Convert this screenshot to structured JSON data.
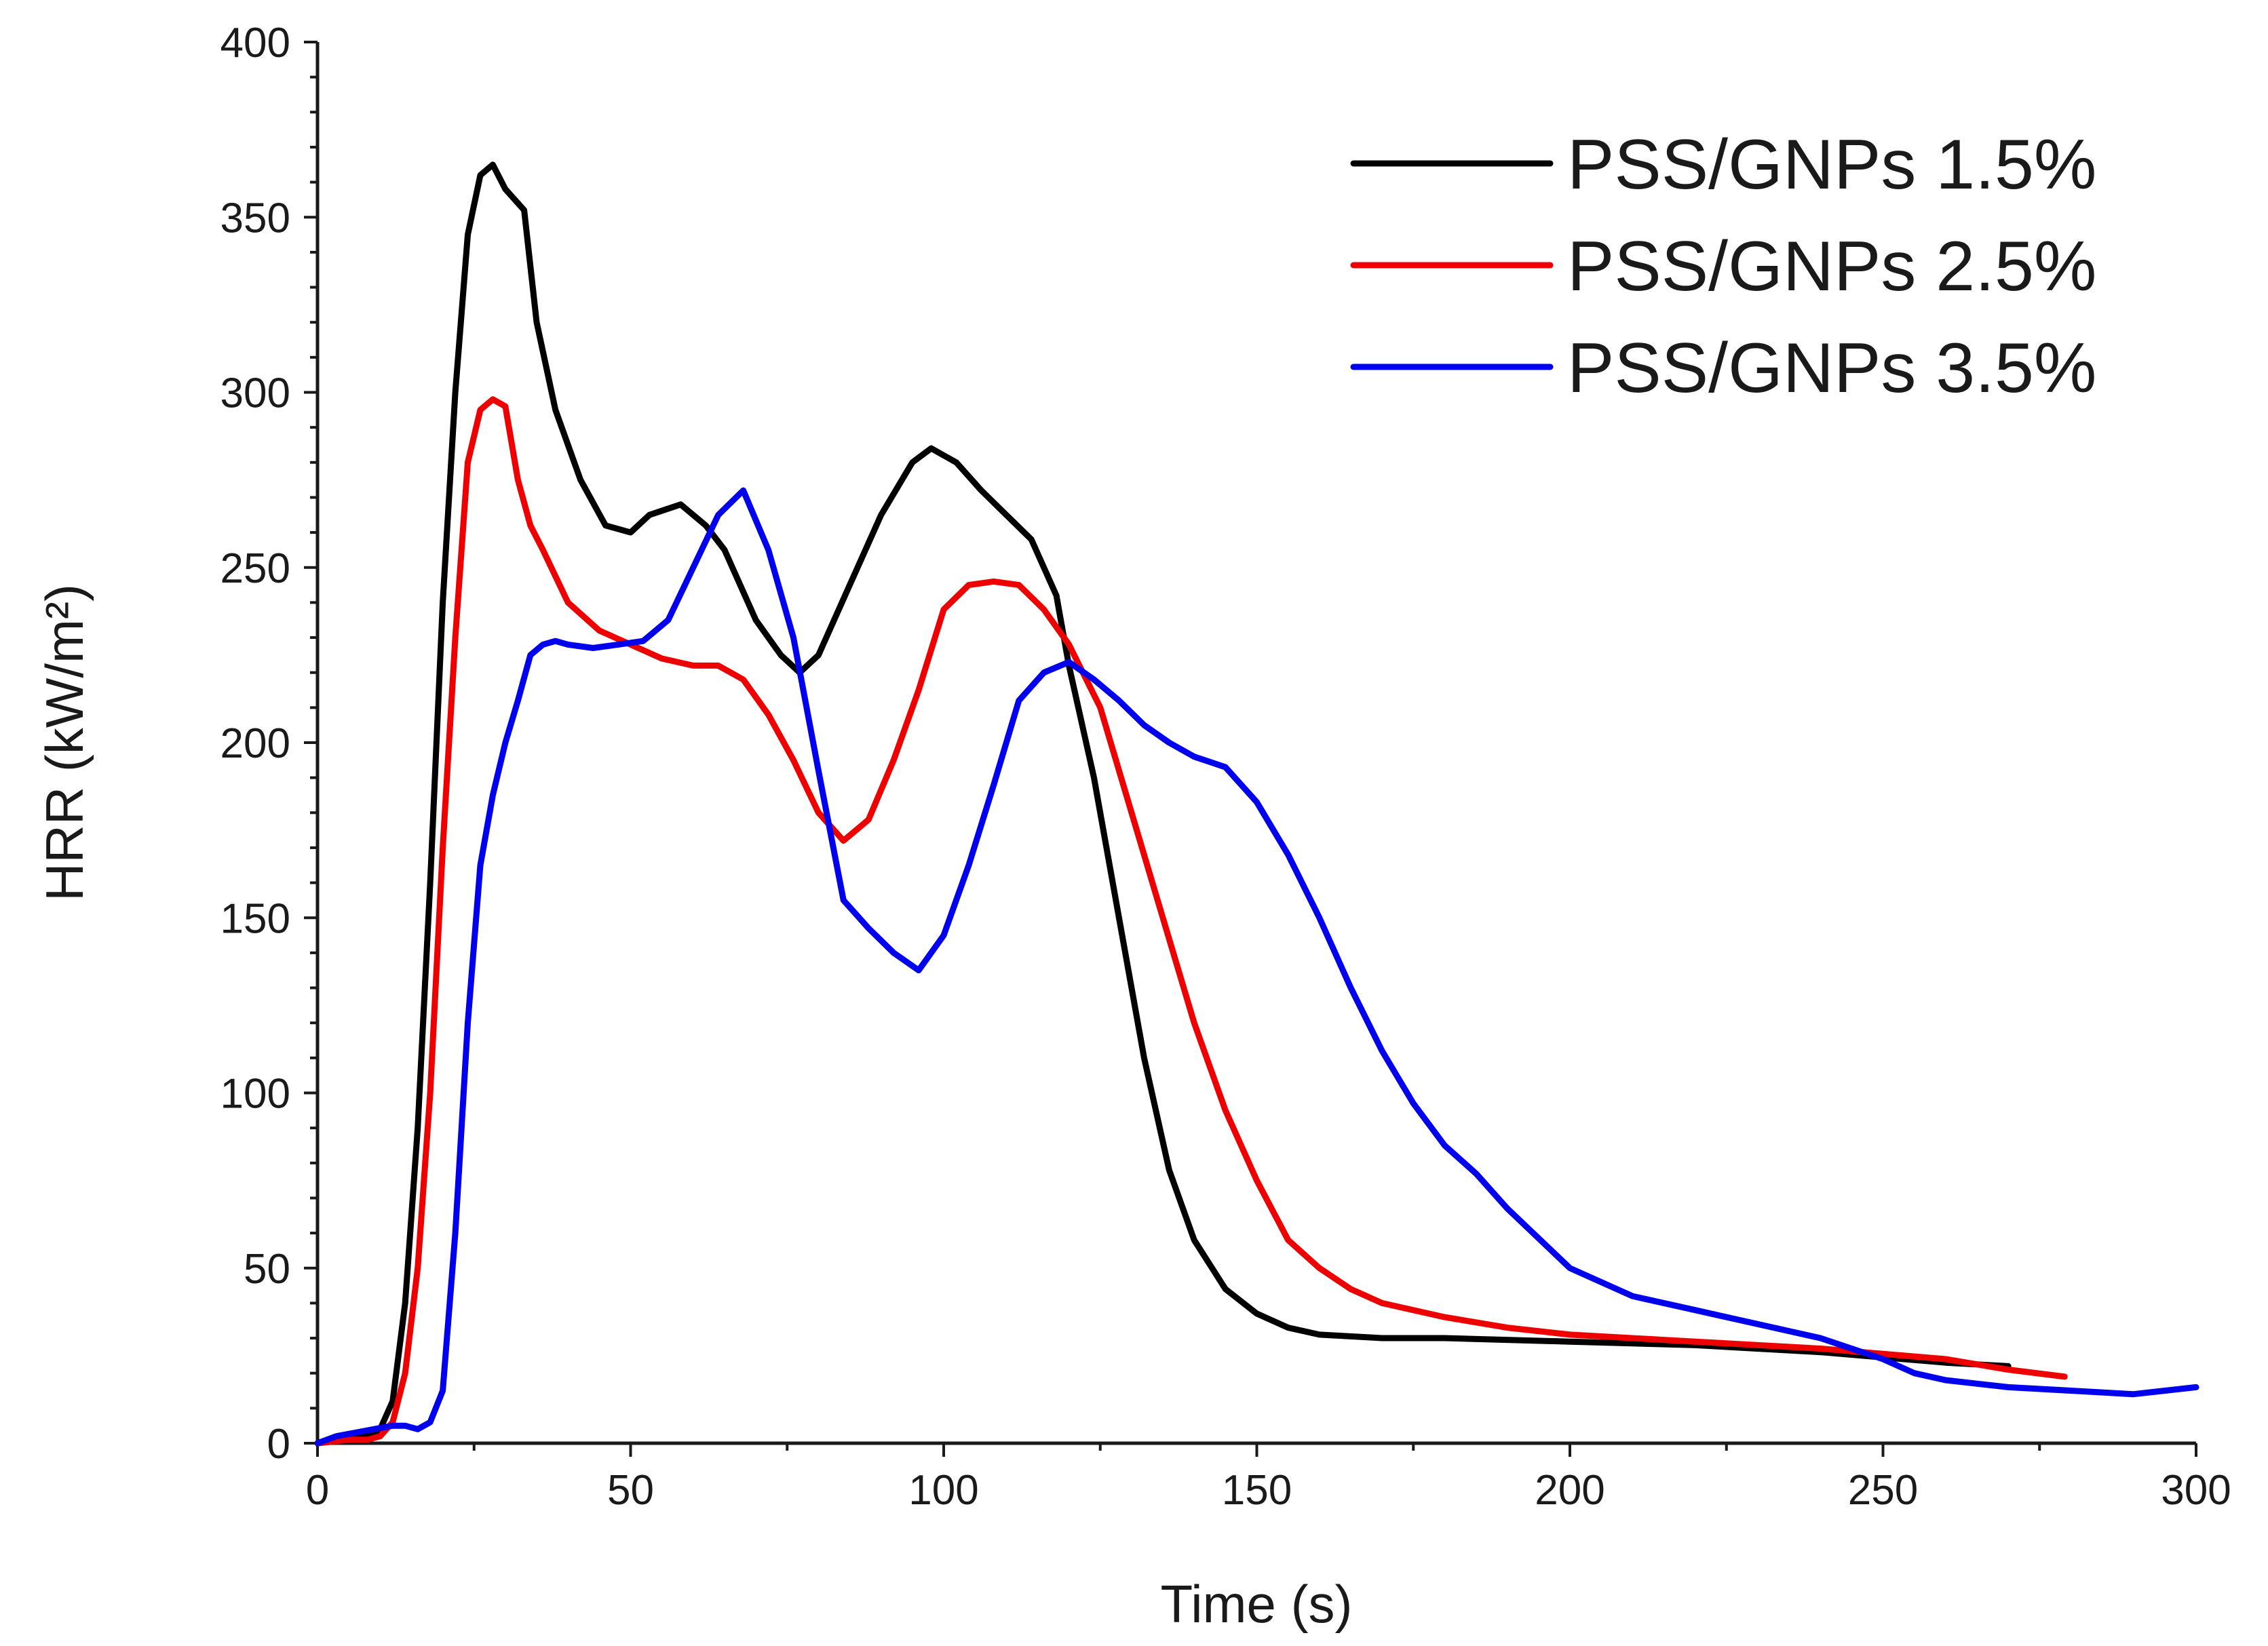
{
  "chart_data": {
    "type": "line",
    "title": "",
    "xlabel": "Time (s)",
    "ylabel": "HRR (kW/m²)",
    "xlim": [
      0,
      300
    ],
    "ylim": [
      0,
      400
    ],
    "xticks": [
      0,
      50,
      100,
      150,
      200,
      250,
      300
    ],
    "yticks": [
      0,
      50,
      100,
      150,
      200,
      250,
      300,
      350,
      400
    ],
    "grid": false,
    "legend_position": "top-right",
    "series": [
      {
        "name": "PSS/GNPs 1.5%",
        "color": "#000000",
        "x": [
          0,
          5,
          8,
          10,
          12,
          14,
          16,
          18,
          20,
          22,
          24,
          26,
          28,
          30,
          33,
          35,
          38,
          42,
          46,
          50,
          53,
          58,
          62,
          65,
          70,
          74,
          77,
          80,
          85,
          90,
          95,
          98,
          102,
          106,
          110,
          114,
          118,
          120,
          124,
          128,
          132,
          136,
          140,
          145,
          150,
          155,
          160,
          170,
          180,
          200,
          220,
          240,
          260,
          270
        ],
        "y": [
          0,
          1,
          2,
          4,
          12,
          40,
          90,
          160,
          240,
          300,
          345,
          362,
          365,
          358,
          352,
          320,
          295,
          275,
          262,
          260,
          265,
          268,
          262,
          255,
          235,
          225,
          220,
          225,
          245,
          265,
          280,
          284,
          280,
          272,
          265,
          258,
          242,
          222,
          190,
          150,
          110,
          78,
          58,
          44,
          37,
          33,
          31,
          30,
          30,
          29,
          28,
          26,
          23,
          22
        ]
      },
      {
        "name": "PSS/GNPs 2.5%",
        "color": "#ee0000",
        "x": [
          0,
          5,
          8,
          10,
          12,
          14,
          16,
          18,
          20,
          22,
          24,
          26,
          28,
          30,
          32,
          34,
          36,
          40,
          45,
          50,
          55,
          60,
          64,
          68,
          72,
          76,
          80,
          84,
          88,
          92,
          96,
          100,
          104,
          108,
          112,
          116,
          120,
          125,
          130,
          135,
          140,
          145,
          150,
          155,
          160,
          165,
          170,
          180,
          190,
          200,
          220,
          240,
          260,
          270,
          279
        ],
        "y": [
          0,
          1,
          1,
          2,
          6,
          20,
          50,
          100,
          170,
          230,
          280,
          295,
          298,
          296,
          275,
          262,
          255,
          240,
          232,
          228,
          224,
          222,
          222,
          218,
          208,
          195,
          180,
          172,
          178,
          195,
          215,
          238,
          245,
          246,
          245,
          238,
          228,
          210,
          180,
          150,
          120,
          95,
          75,
          58,
          50,
          44,
          40,
          36,
          33,
          31,
          29,
          27,
          24,
          21,
          19
        ]
      },
      {
        "name": "PSS/GNPs 3.5%",
        "color": "#0000ee",
        "x": [
          0,
          3,
          6,
          9,
          12,
          14,
          16,
          18,
          20,
          22,
          24,
          26,
          28,
          30,
          32,
          34,
          36,
          38,
          40,
          44,
          48,
          52,
          56,
          60,
          64,
          68,
          72,
          76,
          80,
          84,
          88,
          92,
          96,
          100,
          104,
          108,
          112,
          116,
          120,
          124,
          128,
          132,
          136,
          140,
          145,
          150,
          155,
          160,
          165,
          170,
          175,
          180,
          185,
          190,
          200,
          210,
          220,
          230,
          240,
          250,
          255,
          260,
          270,
          280,
          290,
          300
        ],
        "y": [
          0,
          2,
          3,
          4,
          5,
          5,
          4,
          6,
          15,
          60,
          120,
          165,
          185,
          200,
          212,
          225,
          228,
          229,
          228,
          227,
          228,
          229,
          235,
          250,
          265,
          272,
          255,
          230,
          192,
          155,
          147,
          140,
          135,
          145,
          165,
          188,
          212,
          220,
          223,
          218,
          212,
          205,
          200,
          196,
          193,
          183,
          168,
          150,
          130,
          112,
          97,
          85,
          77,
          67,
          50,
          42,
          38,
          34,
          30,
          24,
          20,
          18,
          16,
          15,
          14,
          16
        ]
      }
    ]
  }
}
